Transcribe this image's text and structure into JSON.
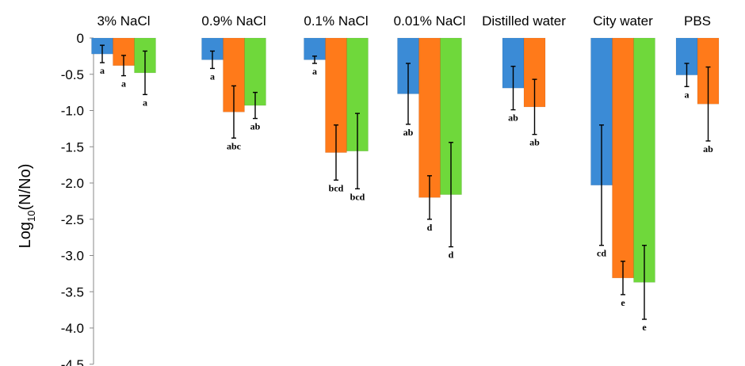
{
  "chart_data": {
    "type": "bar",
    "title": "",
    "xlabel": "",
    "ylabel": "Log10(N/No)",
    "ylabel_base": "Log",
    "ylabel_sub": "10",
    "ylabel_rest": "(N/No)",
    "ylim": [
      -4.5,
      0
    ],
    "yticks": [
      "0",
      "-0.5",
      "-1.0",
      "-1.5",
      "-2.0",
      "-2.5",
      "-3.0",
      "-3.5",
      "-4.0",
      "-4.5"
    ],
    "ytick_values": [
      0,
      -0.5,
      -1.0,
      -1.5,
      -2.0,
      -2.5,
      -3.0,
      -3.5,
      -4.0,
      -4.5
    ],
    "grid": false,
    "legend": "none",
    "series_colors": [
      "#3b8bd6",
      "#ff7a1a",
      "#6fd83b"
    ],
    "groups": [
      {
        "label": "3% NaCl",
        "bars": [
          {
            "value": -0.22,
            "err": 0.12,
            "sig": "a"
          },
          {
            "value": -0.38,
            "err": 0.14,
            "sig": "a"
          },
          {
            "value": -0.48,
            "err": 0.3,
            "sig": "a"
          }
        ]
      },
      {
        "label": "0.9% NaCl",
        "bars": [
          {
            "value": -0.3,
            "err": 0.12,
            "sig": "a"
          },
          {
            "value": -1.02,
            "err": 0.36,
            "sig": "abc"
          },
          {
            "value": -0.93,
            "err": 0.18,
            "sig": "ab"
          }
        ]
      },
      {
        "label": "0.1% NaCl",
        "bars": [
          {
            "value": -0.3,
            "err": 0.05,
            "sig": "a"
          },
          {
            "value": -1.58,
            "err": 0.38,
            "sig": "bcd"
          },
          {
            "value": -1.56,
            "err": 0.52,
            "sig": "bcd"
          }
        ]
      },
      {
        "label": "0.01% NaCl",
        "bars": [
          {
            "value": -0.77,
            "err": 0.42,
            "sig": "ab"
          },
          {
            "value": -2.2,
            "err": 0.3,
            "sig": "d"
          },
          {
            "value": -2.16,
            "err": 0.72,
            "sig": "d"
          }
        ]
      },
      {
        "label": "Distilled water",
        "bars": [
          {
            "value": -0.69,
            "err": 0.3,
            "sig": "ab"
          },
          {
            "value": -0.95,
            "err": 0.38,
            "sig": "ab"
          }
        ]
      },
      {
        "label": "City water",
        "bars": [
          {
            "value": -2.03,
            "err": 0.83,
            "sig": "cd"
          },
          {
            "value": -3.31,
            "err": 0.23,
            "sig": "e"
          },
          {
            "value": -3.37,
            "err": 0.51,
            "sig": "e"
          }
        ]
      },
      {
        "label": "PBS",
        "bars": [
          {
            "value": -0.51,
            "err": 0.16,
            "sig": "a"
          },
          {
            "value": -0.91,
            "err": 0.51,
            "sig": "ab"
          }
        ]
      }
    ]
  }
}
